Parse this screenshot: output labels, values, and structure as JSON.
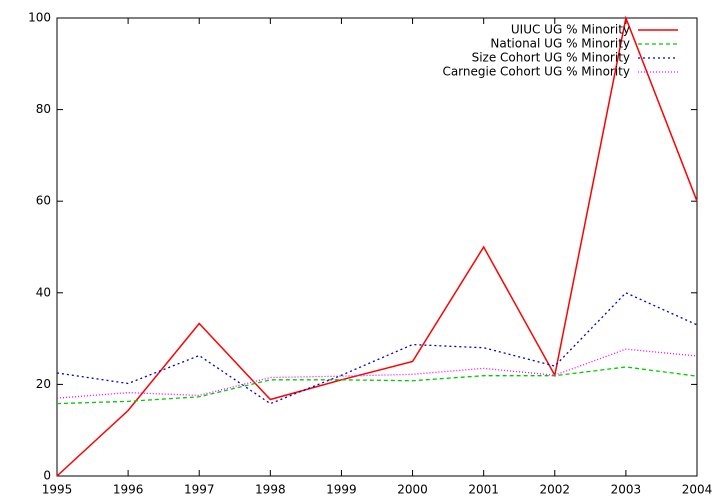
{
  "chart_data": {
    "type": "line",
    "x": [
      1995,
      1996,
      1997,
      1998,
      1999,
      2000,
      2001,
      2002,
      2003,
      2004
    ],
    "xlim": [
      1995,
      2004
    ],
    "xticks": [
      1995,
      1996,
      1997,
      1998,
      1999,
      2000,
      2001,
      2002,
      2003,
      2004
    ],
    "ylim": [
      0,
      100
    ],
    "yticks": [
      0,
      20,
      40,
      60,
      80,
      100
    ],
    "grid": false,
    "legend": "top-right",
    "series": [
      {
        "name": "UIUC UG % Minority",
        "color": "#ff0000",
        "values": [
          0,
          14.3,
          33.3,
          16.7,
          21,
          25,
          50,
          22,
          100,
          60
        ]
      },
      {
        "name": "National UG % Minority",
        "color": "#00cc00",
        "values": [
          15.8,
          16.3,
          17.3,
          21,
          21,
          20.8,
          21.9,
          21.9,
          23.8,
          21.8
        ]
      },
      {
        "name": "Size Cohort UG % Minority",
        "color": "#0000cc",
        "values": [
          22.5,
          20.2,
          26.3,
          15.8,
          22,
          28.7,
          28,
          24,
          40,
          33
        ]
      },
      {
        "name": "Carnegie Cohort UG % Minority",
        "color": "#ff00ff",
        "values": [
          17,
          18.2,
          17.6,
          21.5,
          21.8,
          22.2,
          23.5,
          22,
          27.7,
          26.2
        ]
      }
    ]
  }
}
